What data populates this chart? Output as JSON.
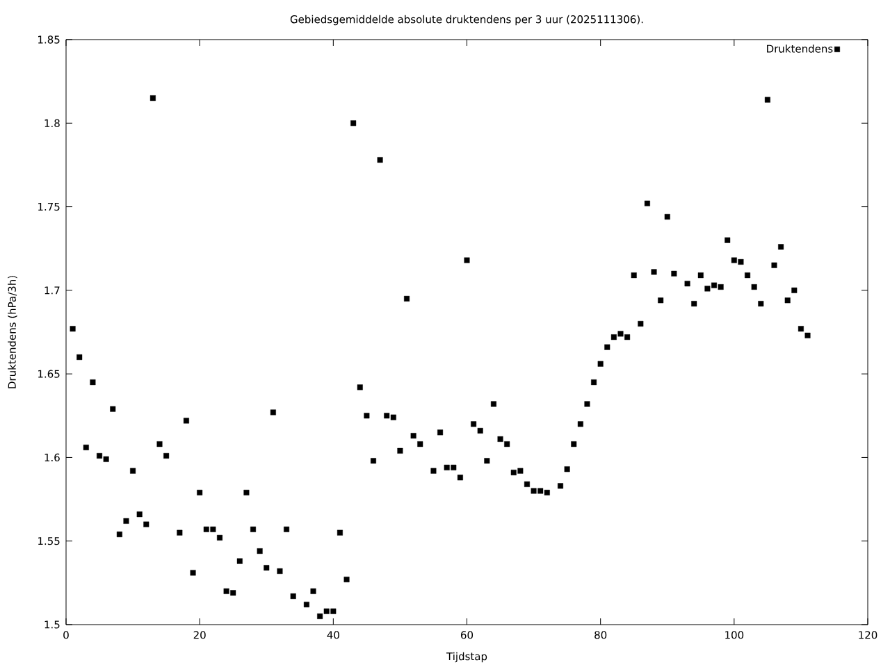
{
  "chart_data": {
    "type": "scatter",
    "title": "Gebiedsgemiddelde absolute druktendens per 3 uur (2025111306).",
    "xlabel": "Tijdstap",
    "ylabel": "Druktendens (hPa/3h)",
    "x": [
      1,
      2,
      3,
      4,
      5,
      6,
      7,
      8,
      9,
      10,
      11,
      12,
      13,
      14,
      15,
      17,
      18,
      19,
      20,
      21,
      22,
      23,
      24,
      25,
      26,
      27,
      28,
      29,
      30,
      31,
      32,
      33,
      34,
      36,
      37,
      38,
      39,
      40,
      41,
      42,
      43,
      44,
      45,
      46,
      47,
      48,
      49,
      50,
      51,
      52,
      53,
      55,
      56,
      57,
      58,
      59,
      60,
      61,
      62,
      63,
      64,
      65,
      66,
      67,
      68,
      69,
      70,
      71,
      72,
      74,
      75,
      76,
      77,
      78,
      79,
      80,
      81,
      82,
      83,
      84,
      85,
      86,
      87,
      88,
      89,
      90,
      91,
      93,
      94,
      95,
      96,
      97,
      98,
      99,
      100,
      101,
      102,
      103,
      104,
      105,
      106,
      107,
      108,
      109,
      110,
      111
    ],
    "series": [
      {
        "name": "Druktendens",
        "color": "#000000",
        "values": [
          1.677,
          1.66,
          1.606,
          1.645,
          1.601,
          1.599,
          1.629,
          1.554,
          1.562,
          1.592,
          1.566,
          1.56,
          1.815,
          1.608,
          1.601,
          1.555,
          1.622,
          1.531,
          1.579,
          1.557,
          1.557,
          1.552,
          1.52,
          1.519,
          1.538,
          1.579,
          1.557,
          1.544,
          1.534,
          1.627,
          1.532,
          1.557,
          1.517,
          1.512,
          1.52,
          1.505,
          1.508,
          1.508,
          1.555,
          1.527,
          1.8,
          1.642,
          1.625,
          1.598,
          1.778,
          1.625,
          1.624,
          1.604,
          1.695,
          1.613,
          1.608,
          1.592,
          1.615,
          1.594,
          1.594,
          1.588,
          1.718,
          1.62,
          1.616,
          1.598,
          1.632,
          1.611,
          1.608,
          1.591,
          1.592,
          1.584,
          1.58,
          1.58,
          1.579,
          1.583,
          1.593,
          1.608,
          1.62,
          1.632,
          1.645,
          1.656,
          1.666,
          1.672,
          1.674,
          1.672,
          1.709,
          1.68,
          1.752,
          1.711,
          1.694,
          1.744,
          1.71,
          1.704,
          1.692,
          1.709,
          1.701,
          1.703,
          1.702,
          1.73,
          1.718,
          1.717,
          1.709,
          1.702,
          1.692,
          1.814,
          1.715,
          1.726,
          1.694,
          1.7,
          1.677,
          1.673
        ]
      }
    ],
    "xlim": [
      0,
      120
    ],
    "ylim": [
      1.5,
      1.85
    ],
    "xticks": [
      0,
      20,
      40,
      60,
      80,
      100,
      120
    ],
    "yticks": [
      1.5,
      1.55,
      1.6,
      1.65,
      1.7,
      1.75,
      1.8,
      1.85
    ],
    "legend": "top right",
    "marker": "square"
  }
}
